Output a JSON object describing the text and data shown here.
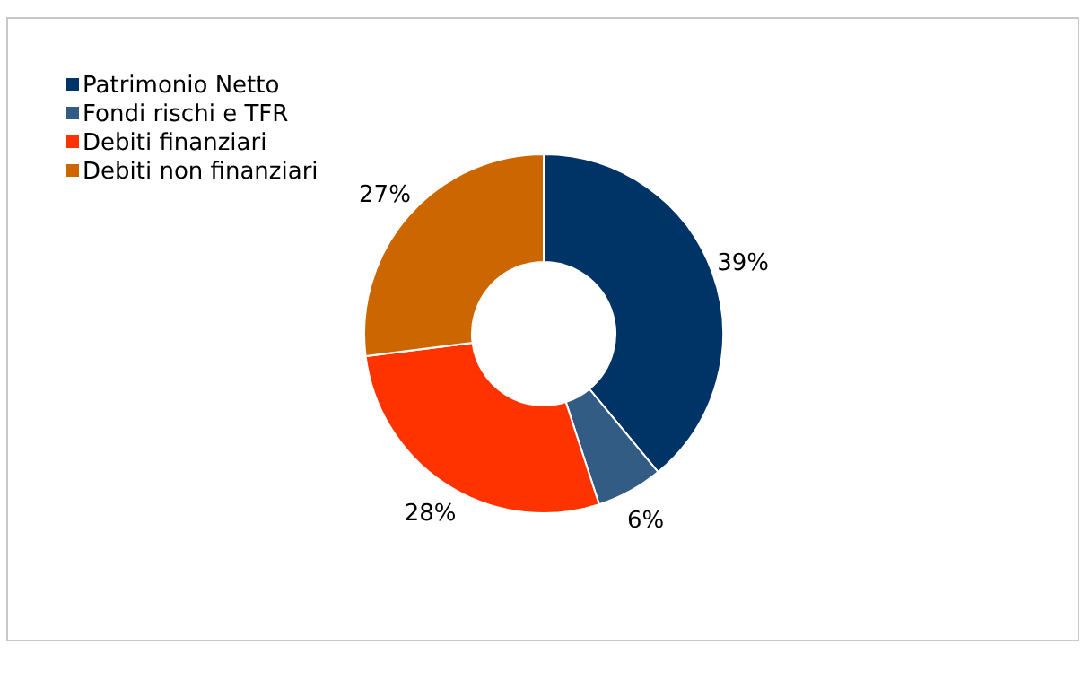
{
  "chart_data": {
    "type": "donut",
    "categories": [
      "Patrimonio Netto",
      "Fondi rischi e TFR",
      "Debiti finanziari",
      "Debiti non finanziari"
    ],
    "values": [
      39,
      6,
      28,
      27
    ],
    "colors": [
      "#003366",
      "#335c85",
      "#ff3300",
      "#cc6600"
    ],
    "value_labels": [
      "39%",
      "6%",
      "28%",
      "27%"
    ],
    "legend": "top left"
  }
}
